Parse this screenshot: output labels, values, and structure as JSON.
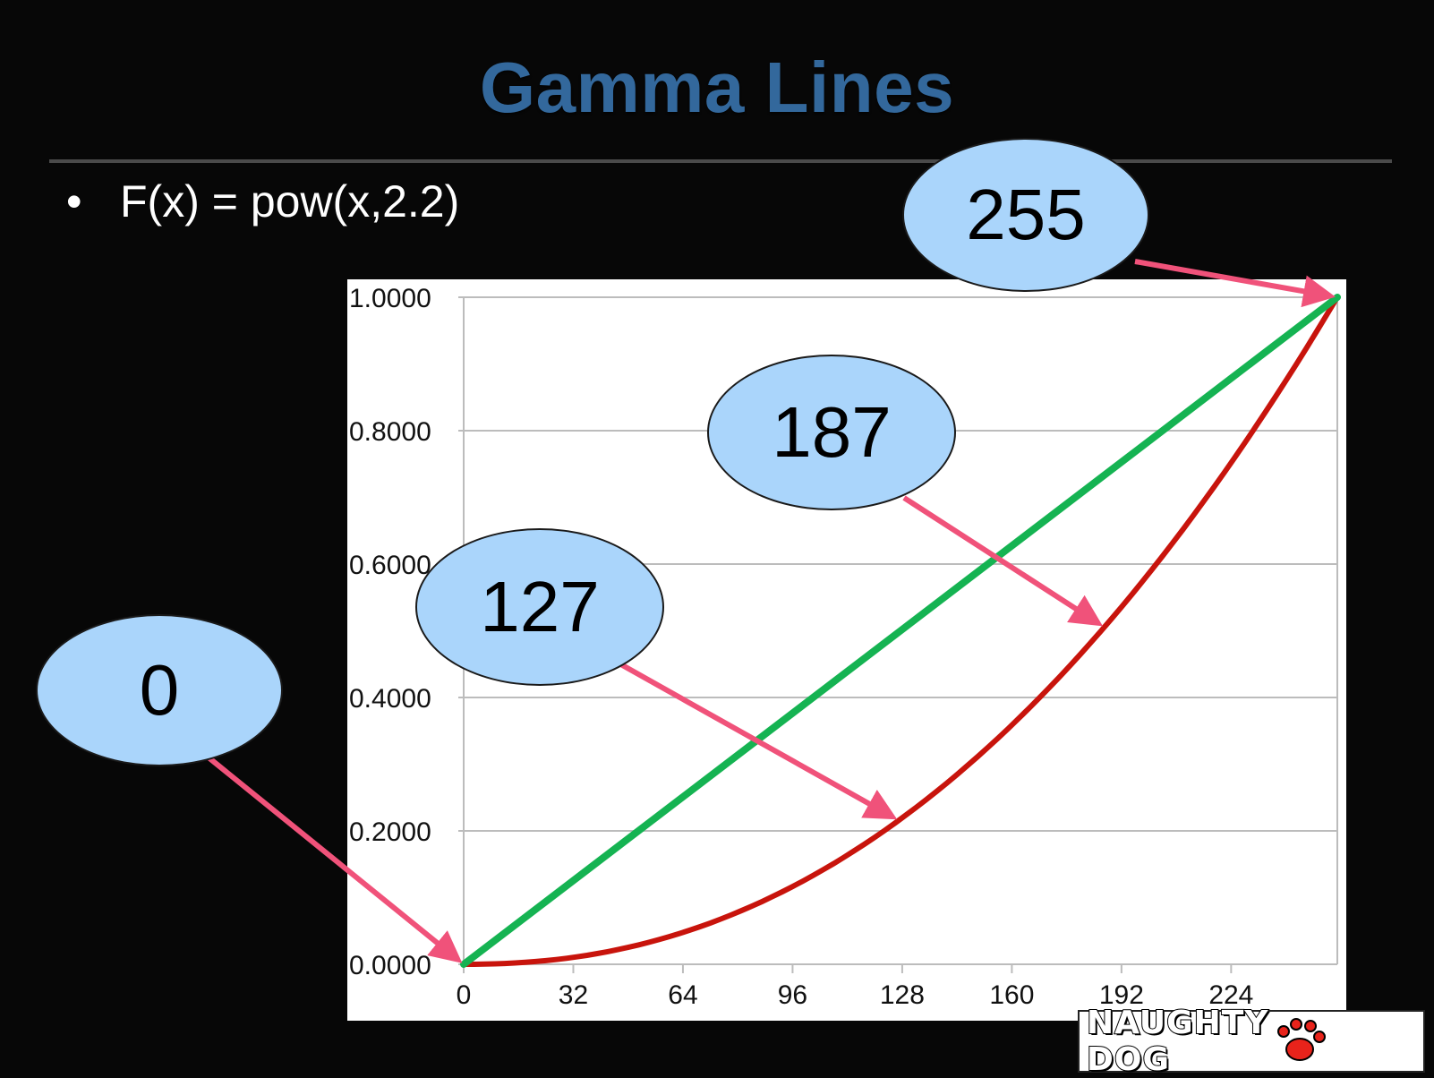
{
  "slide": {
    "title": "Gamma Lines",
    "bullet": "F(x) = pow(x,2.2)",
    "bullet_symbol": "•"
  },
  "callouts": [
    {
      "label": "0",
      "points_to_x": 0
    },
    {
      "label": "127",
      "points_to_x": 127
    },
    {
      "label": "187",
      "points_to_x": 187
    },
    {
      "label": "255",
      "points_to_x": 255
    }
  ],
  "colors": {
    "title": "#33689c",
    "gamma_curve": "#c8140c",
    "linear_line": "#15b352",
    "arrow": "#f0527a",
    "callout_fill": "#aad5fb",
    "gridline": "#bcbcbc"
  },
  "logo": {
    "text": "NAUGHTY DOG"
  },
  "chart_data": {
    "type": "line",
    "title": "",
    "xlabel": "",
    "ylabel": "",
    "x_ticks": [
      0,
      32,
      64,
      96,
      128,
      160,
      192,
      224
    ],
    "y_ticks": [
      "0.0000",
      "0.2000",
      "0.4000",
      "0.6000",
      "0.8000",
      "1.0000"
    ],
    "xlim": [
      0,
      255
    ],
    "ylim": [
      0,
      1
    ],
    "grid": "horizontal",
    "series": [
      {
        "color": "#c8140c",
        "x": [
          0,
          32,
          64,
          96,
          128,
          160,
          192,
          224,
          255
        ],
        "values": [
          0.0,
          0.0103,
          0.0478,
          0.1166,
          0.2195,
          0.3588,
          0.5352,
          0.7515,
          1.0
        ]
      },
      {
        "color": "#15b352",
        "x": [
          0,
          255
        ],
        "values": [
          0.0,
          1.0
        ]
      }
    ]
  }
}
